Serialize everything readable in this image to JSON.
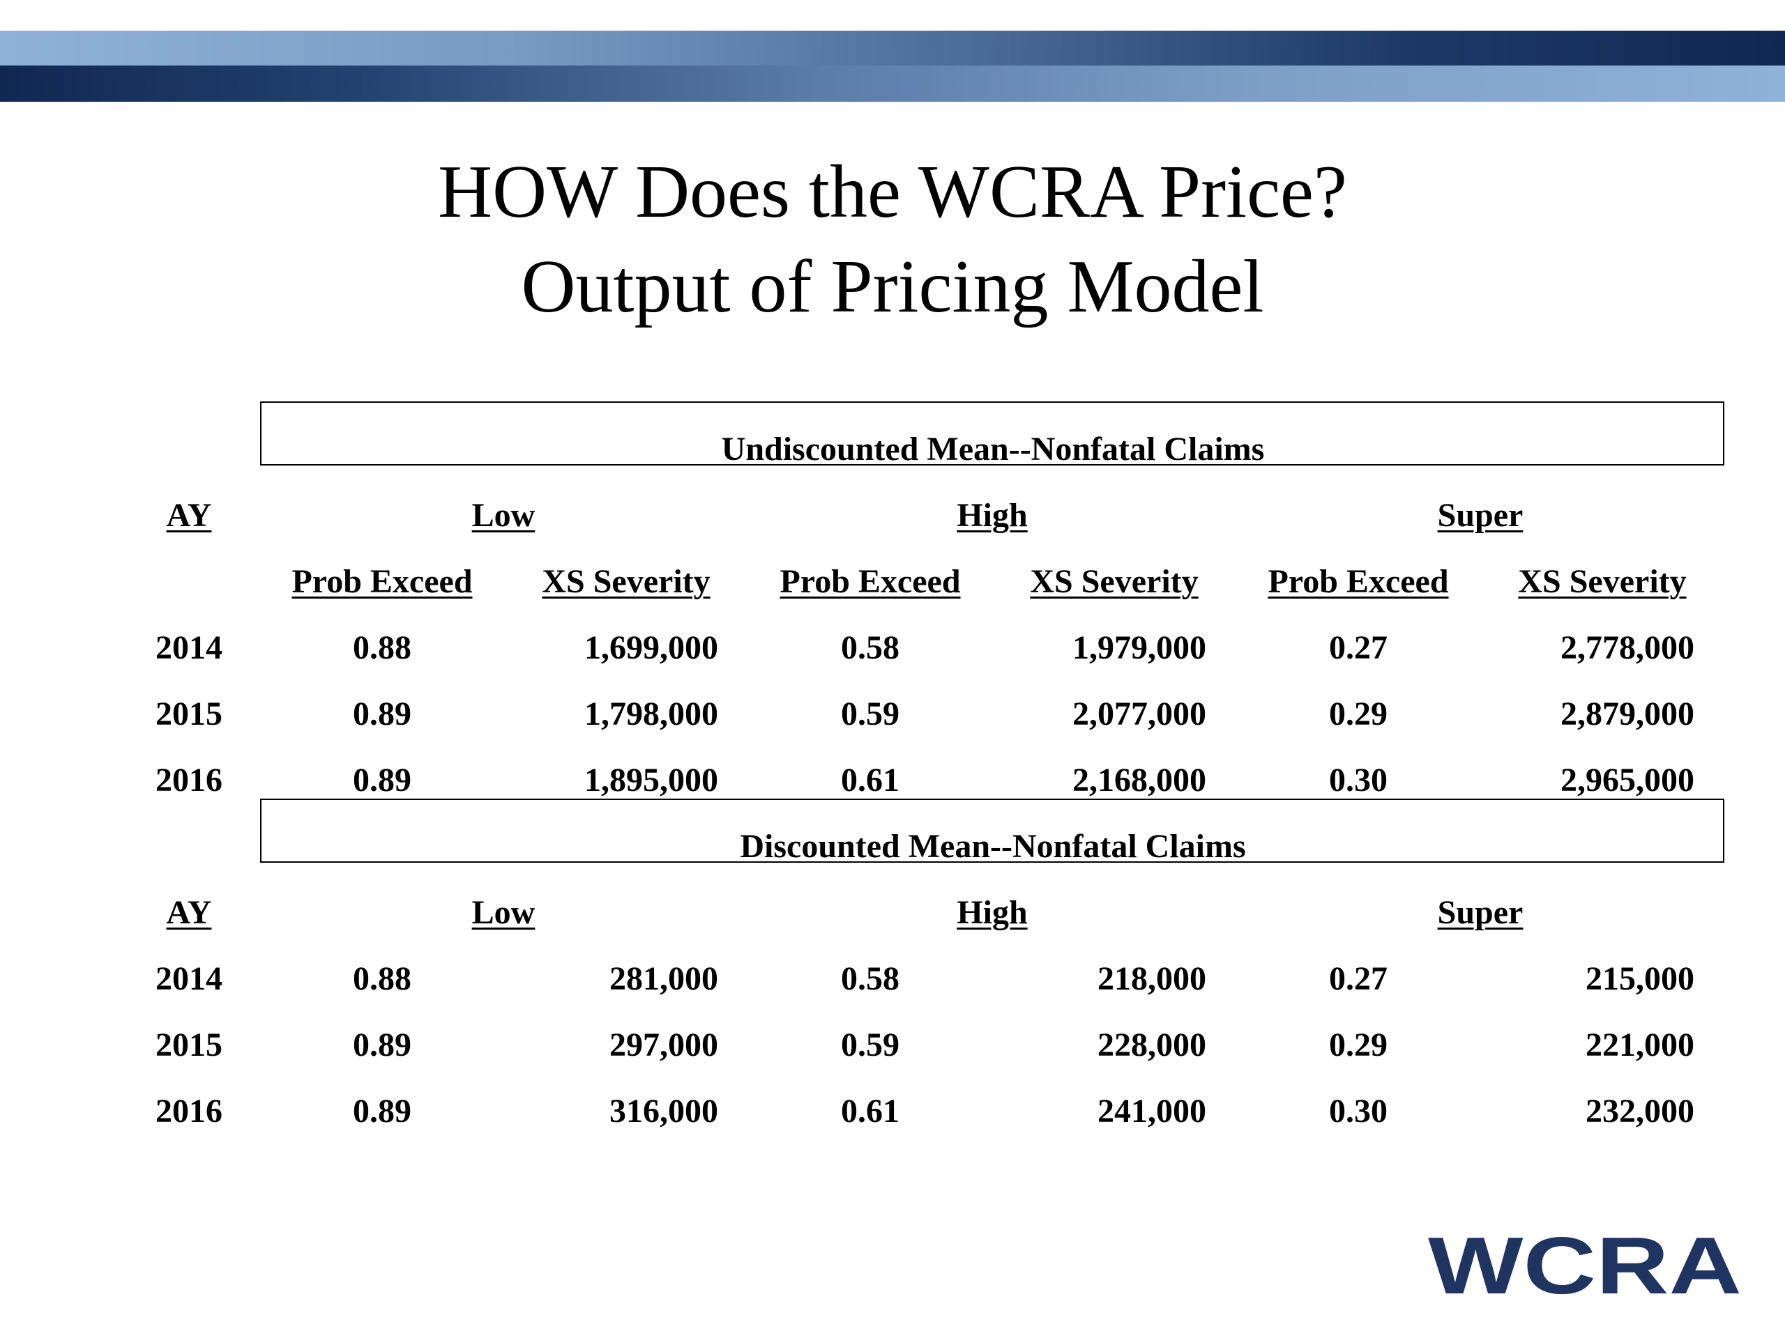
{
  "slide": {
    "title_line1": "HOW Does the WCRA Price?",
    "title_line2": "Output of Pricing Model"
  },
  "colors": {
    "band_dark": "#0f2852",
    "band_light": "#8fb2d8",
    "logo": "#1f3460"
  },
  "table1": {
    "section_title": "Undiscounted Mean--Nonfatal Claims",
    "ay_header": "AY",
    "groups": [
      "Low",
      "High",
      "Super"
    ],
    "subheaders": [
      "Prob Exceed",
      "XS Severity",
      "Prob Exceed",
      "XS Severity",
      "Prob Exceed",
      "XS Severity"
    ],
    "rows": [
      [
        "2014",
        "0.88",
        "1,699,000",
        "0.58",
        "1,979,000",
        "0.27",
        "2,778,000"
      ],
      [
        "2015",
        "0.89",
        "1,798,000",
        "0.59",
        "2,077,000",
        "0.29",
        "2,879,000"
      ],
      [
        "2016",
        "0.89",
        "1,895,000",
        "0.61",
        "2,168,000",
        "0.30",
        "2,965,000"
      ]
    ]
  },
  "table2": {
    "section_title": "Discounted Mean--Nonfatal Claims",
    "ay_header": "AY",
    "groups": [
      "Low",
      "High",
      "Super"
    ],
    "rows": [
      [
        "2014",
        "0.88",
        "281,000",
        "0.58",
        "218,000",
        "0.27",
        "215,000"
      ],
      [
        "2015",
        "0.89",
        "297,000",
        "0.59",
        "228,000",
        "0.29",
        "221,000"
      ],
      [
        "2016",
        "0.89",
        "316,000",
        "0.61",
        "241,000",
        "0.30",
        "232,000"
      ]
    ]
  },
  "logo": {
    "text": "WCRA",
    "icon": "wcra-logo-icon"
  }
}
